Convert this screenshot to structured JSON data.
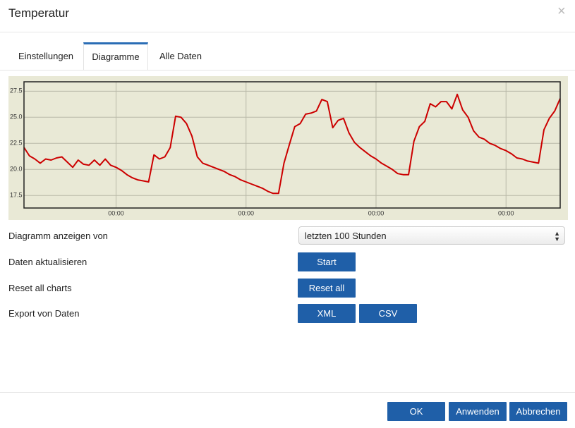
{
  "header": {
    "title": "Temperatur",
    "close": "×"
  },
  "tabs": {
    "items": [
      "Einstellungen",
      "Diagramme",
      "Alle Daten"
    ],
    "active": 1
  },
  "chart_data": {
    "type": "line",
    "categories": [
      null,
      null,
      null,
      null,
      null,
      null,
      null,
      null,
      null,
      null,
      null,
      null,
      null,
      null,
      null,
      null,
      null,
      "00:00",
      null,
      null,
      null,
      null,
      null,
      null,
      null,
      null,
      null,
      null,
      null,
      null,
      null,
      null,
      null,
      null,
      null,
      null,
      null,
      null,
      null,
      null,
      null,
      "00:00",
      null,
      null,
      null,
      null,
      null,
      null,
      null,
      null,
      null,
      null,
      null,
      null,
      null,
      null,
      null,
      null,
      null,
      null,
      null,
      null,
      null,
      null,
      null,
      "00:00",
      null,
      null,
      null,
      null,
      null,
      null,
      null,
      null,
      null,
      null,
      null,
      null,
      null,
      null,
      null,
      null,
      null,
      null,
      null,
      null,
      null,
      null,
      null,
      "00:00",
      null,
      null,
      null,
      null,
      null,
      null,
      null,
      null,
      null,
      null
    ],
    "series": [
      {
        "color": "#cc0000",
        "values": [
          22.1,
          21.3,
          21.0,
          20.6,
          21.0,
          20.9,
          21.1,
          21.2,
          20.7,
          20.2,
          20.9,
          20.5,
          20.4,
          20.9,
          20.4,
          21.0,
          20.4,
          20.2,
          19.9,
          19.5,
          19.2,
          19.0,
          18.9,
          18.8,
          21.4,
          21.0,
          21.2,
          22.1,
          25.1,
          25.0,
          24.4,
          23.2,
          21.2,
          20.6,
          20.4,
          20.2,
          20.0,
          19.8,
          19.5,
          19.3,
          19.0,
          18.8,
          18.6,
          18.4,
          18.2,
          17.9,
          17.7,
          17.7,
          20.6,
          22.4,
          24.1,
          24.4,
          25.3,
          25.4,
          25.6,
          26.7,
          26.5,
          24.0,
          24.7,
          24.9,
          23.5,
          22.6,
          22.1,
          21.7,
          21.3,
          21.0,
          20.6,
          20.3,
          20.0,
          19.6,
          19.5,
          19.5,
          22.7,
          24.1,
          24.6,
          26.3,
          26.0,
          26.5,
          26.5,
          25.8,
          27.2,
          25.7,
          25.0,
          23.7,
          23.1,
          22.9,
          22.5,
          22.3,
          22.0,
          21.8,
          21.5,
          21.1,
          21.0,
          20.8,
          20.7,
          20.6,
          23.8,
          24.9,
          25.6,
          26.8
        ]
      }
    ],
    "ylim": [
      16.3,
      28.4
    ],
    "yticks": [
      17.5,
      {
        "value": 20,
        "label": "20.0"
      },
      22.5,
      {
        "value": 25,
        "label": "25.0"
      },
      27.5
    ],
    "grid": true,
    "background": "#e9e9d6"
  },
  "form": {
    "rows": [
      {
        "label": "Diagramm anzeigen von",
        "select": "letzten 100 Stunden"
      },
      {
        "label": "Daten aktualisieren",
        "buttons": [
          "Start"
        ]
      },
      {
        "label": "Reset all charts",
        "buttons": [
          "Reset all"
        ]
      },
      {
        "label": "Export von Daten",
        "buttons": [
          "XML",
          "CSV"
        ]
      }
    ]
  },
  "footer": {
    "buttons": [
      "OK",
      "Anwenden",
      "Abbrechen"
    ]
  }
}
